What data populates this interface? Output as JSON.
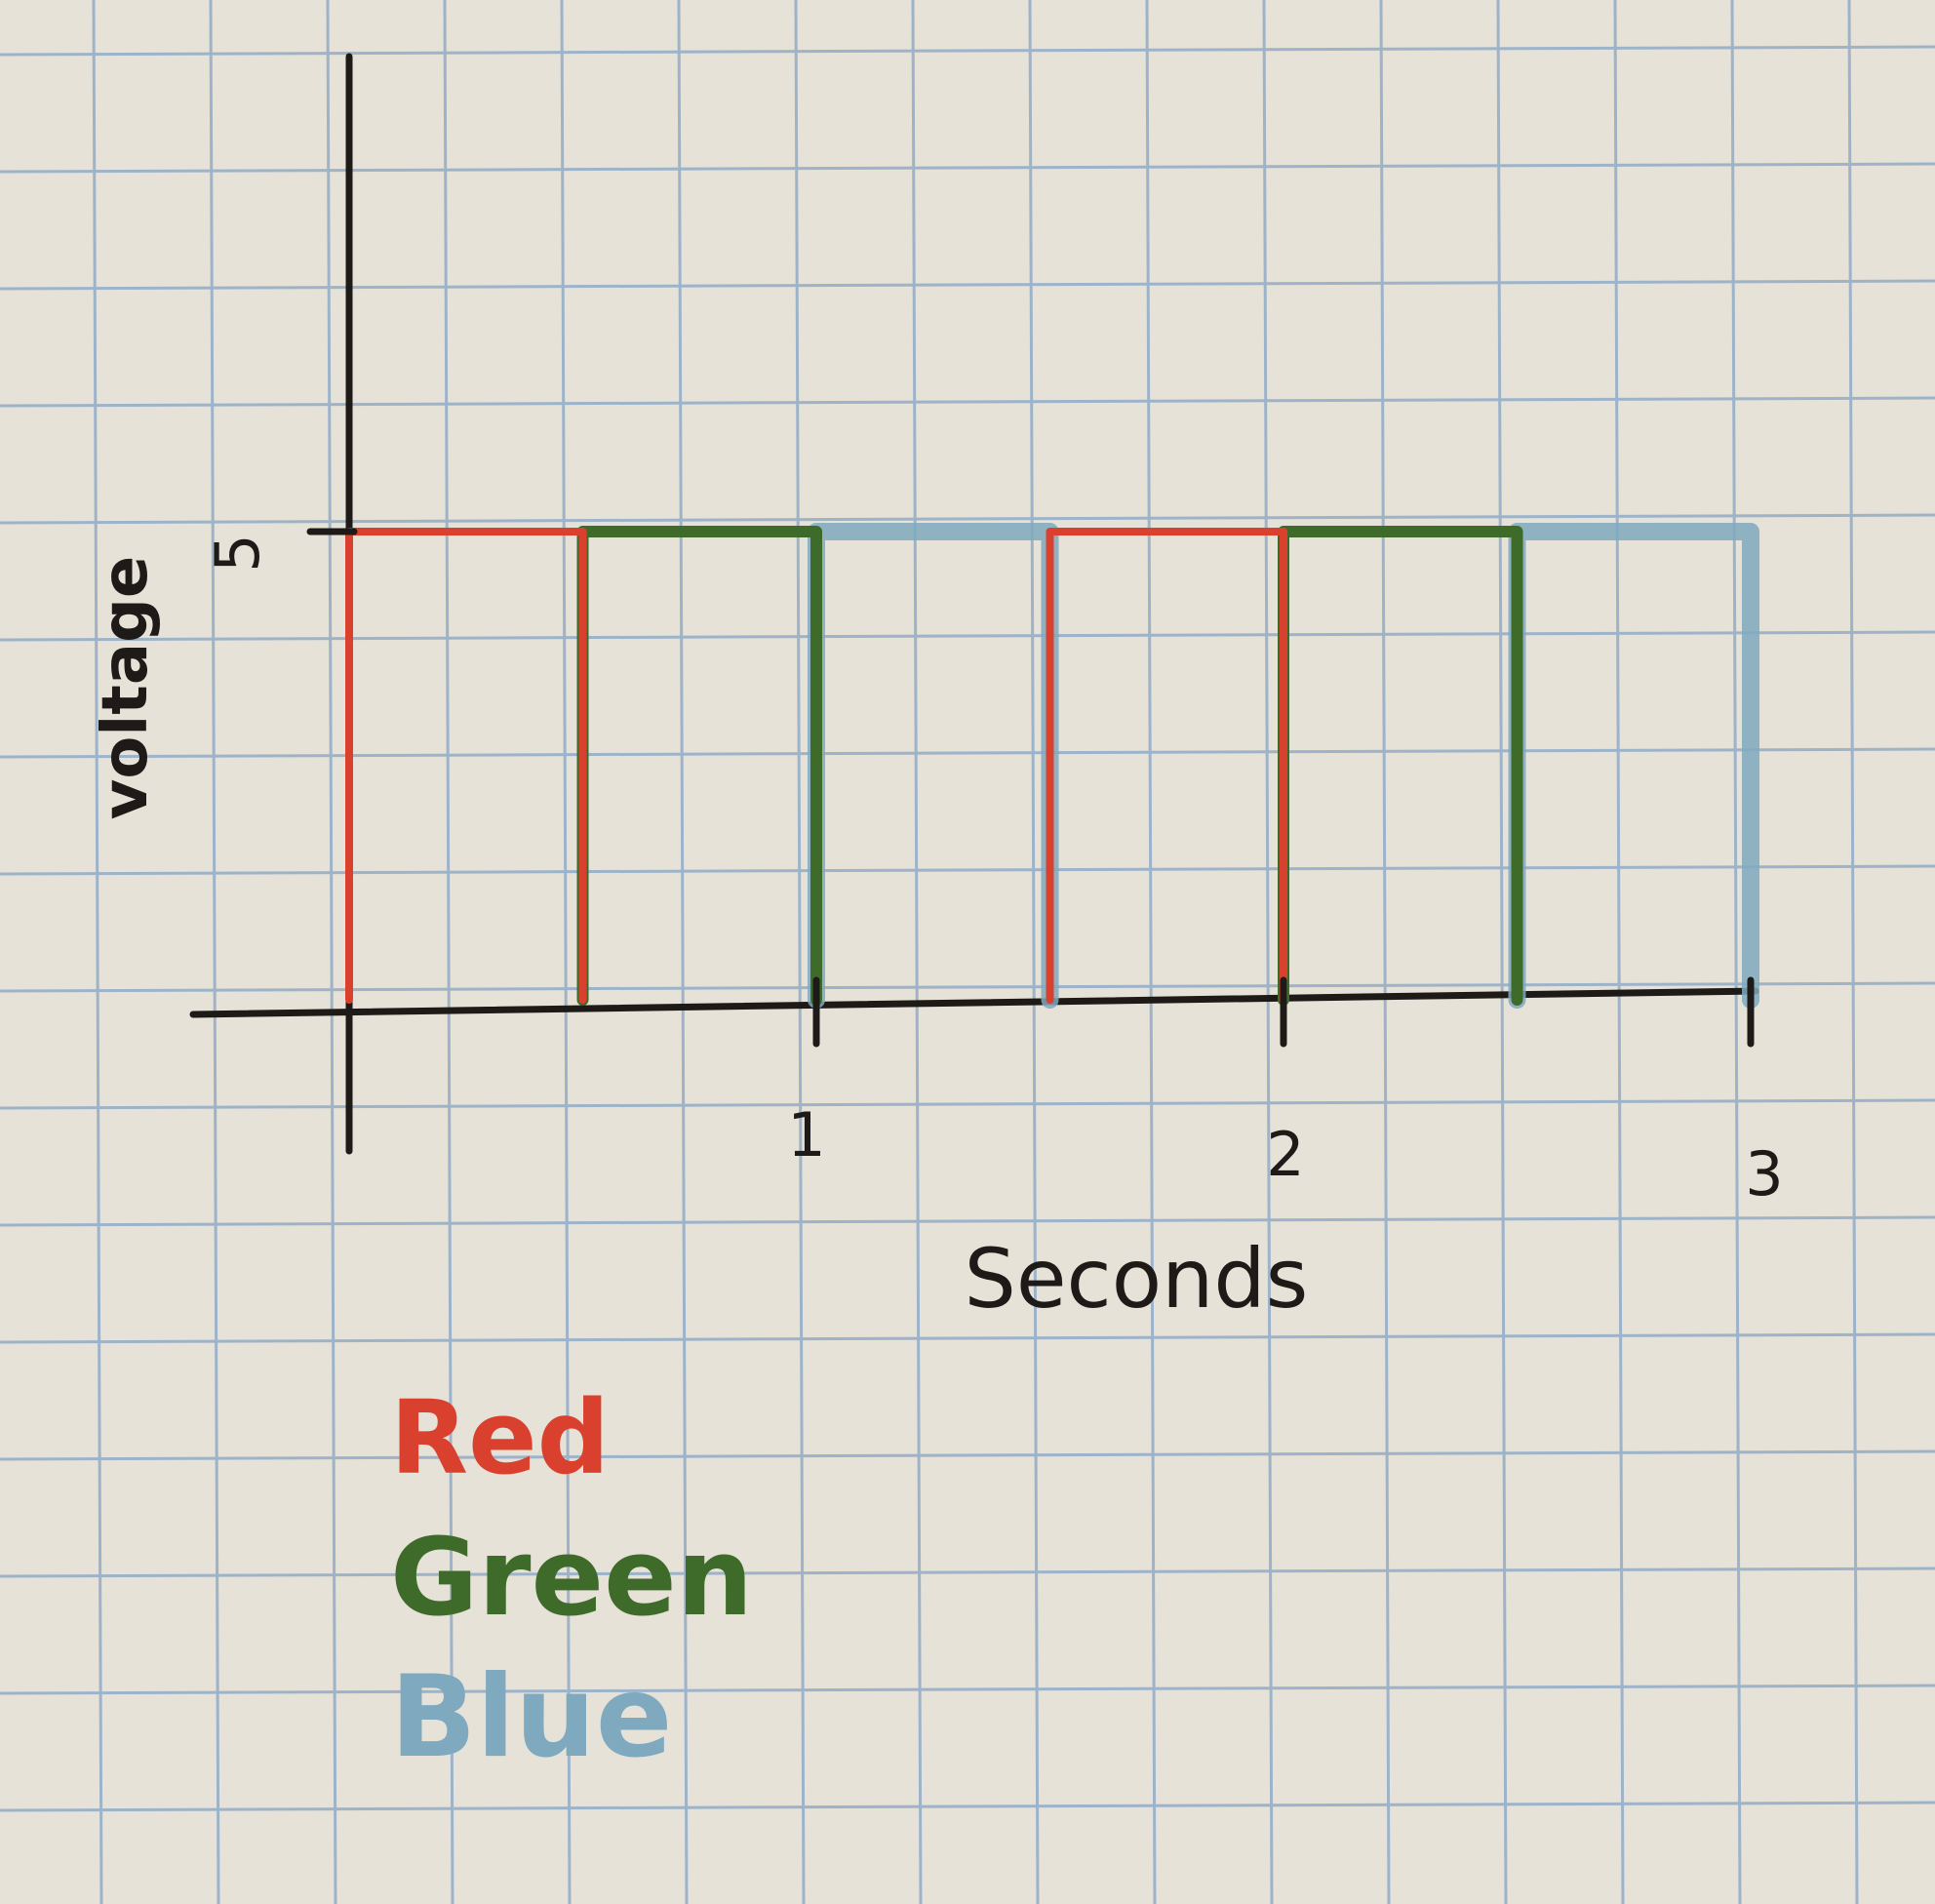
{
  "chart_data": {
    "type": "line",
    "step": true,
    "xlabel": "Seconds",
    "ylabel": "voltage",
    "xlim": [
      0,
      3
    ],
    "ylim": [
      0,
      5
    ],
    "x_ticks": [
      "1",
      "2",
      "3"
    ],
    "y_ticks": [
      "5"
    ],
    "grid": true,
    "legend": "bottom-left",
    "series": [
      {
        "name": "Red",
        "color": "#d9412e",
        "segments": [
          [
            0,
            0.5
          ],
          [
            1.5,
            2
          ]
        ]
      },
      {
        "name": "Green",
        "color": "#3f6b2a",
        "segments": [
          [
            0.5,
            1
          ],
          [
            2,
            2.5
          ]
        ]
      },
      {
        "name": "Blue",
        "color": "#7fa9bf",
        "segments": [
          [
            1,
            1.5
          ],
          [
            2.5,
            3
          ]
        ]
      }
    ],
    "high_value": 5,
    "low_value": 0
  },
  "colors": {
    "paper": "#e6e2d8",
    "grid": "#9db3c9",
    "ink": "#1d1a18"
  }
}
